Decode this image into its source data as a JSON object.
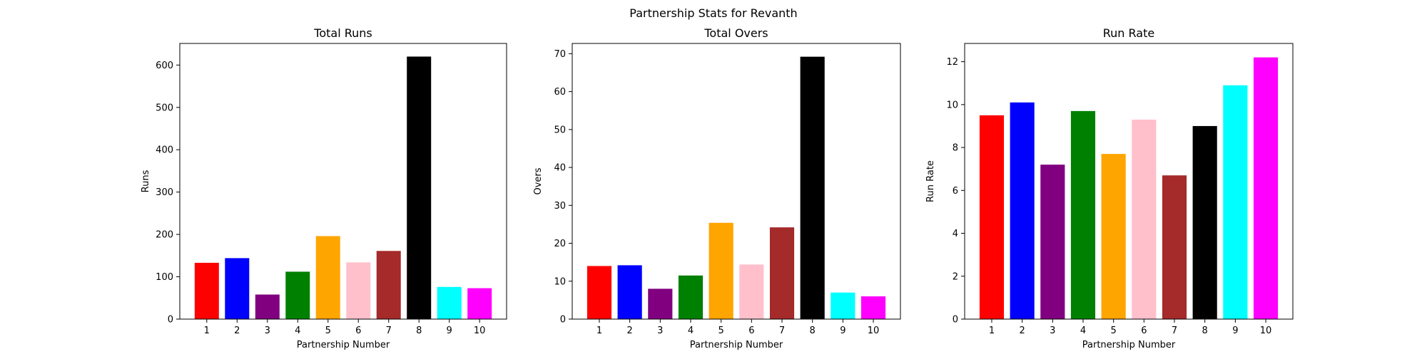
{
  "figure": {
    "suptitle": "Partnership Stats for Revanth"
  },
  "chart_data": [
    {
      "type": "bar",
      "title": "Total Runs",
      "xlabel": "Partnership Number",
      "ylabel": "Runs",
      "categories": [
        "1",
        "2",
        "3",
        "4",
        "5",
        "6",
        "7",
        "8",
        "9",
        "10"
      ],
      "values": [
        133,
        144,
        58,
        112,
        196,
        134,
        161,
        620,
        76,
        73
      ],
      "colors": [
        "#ff0000",
        "#0000ff",
        "#800080",
        "#008000",
        "#ffa500",
        "#ffc0cb",
        "#a52a2a",
        "#000000",
        "#00ffff",
        "#ff00ff"
      ],
      "ylim": [
        0,
        651
      ],
      "yticks": [
        0,
        100,
        200,
        300,
        400,
        500,
        600
      ],
      "grid": false
    },
    {
      "type": "bar",
      "title": "Total Overs",
      "xlabel": "Partnership Number",
      "ylabel": "Overs",
      "categories": [
        "1",
        "2",
        "3",
        "4",
        "5",
        "6",
        "7",
        "8",
        "9",
        "10"
      ],
      "values": [
        14,
        14.2,
        8,
        11.5,
        25.4,
        14.4,
        24.2,
        69.2,
        7,
        6
      ],
      "colors": [
        "#ff0000",
        "#0000ff",
        "#800080",
        "#008000",
        "#ffa500",
        "#ffc0cb",
        "#a52a2a",
        "#000000",
        "#00ffff",
        "#ff00ff"
      ],
      "ylim": [
        0,
        72.7
      ],
      "yticks": [
        0,
        10,
        20,
        30,
        40,
        50,
        60,
        70
      ],
      "grid": false
    },
    {
      "type": "bar",
      "title": "Run Rate",
      "xlabel": "Partnership Number",
      "ylabel": "Run Rate",
      "categories": [
        "1",
        "2",
        "3",
        "4",
        "5",
        "6",
        "7",
        "8",
        "9",
        "10"
      ],
      "values": [
        9.5,
        10.1,
        7.2,
        9.7,
        7.7,
        9.3,
        6.7,
        9.0,
        10.9,
        12.2
      ],
      "colors": [
        "#ff0000",
        "#0000ff",
        "#800080",
        "#008000",
        "#ffa500",
        "#ffc0cb",
        "#a52a2a",
        "#000000",
        "#00ffff",
        "#ff00ff"
      ],
      "ylim": [
        0,
        12.85
      ],
      "yticks": [
        0,
        2,
        4,
        6,
        8,
        10,
        12
      ],
      "grid": false
    }
  ]
}
